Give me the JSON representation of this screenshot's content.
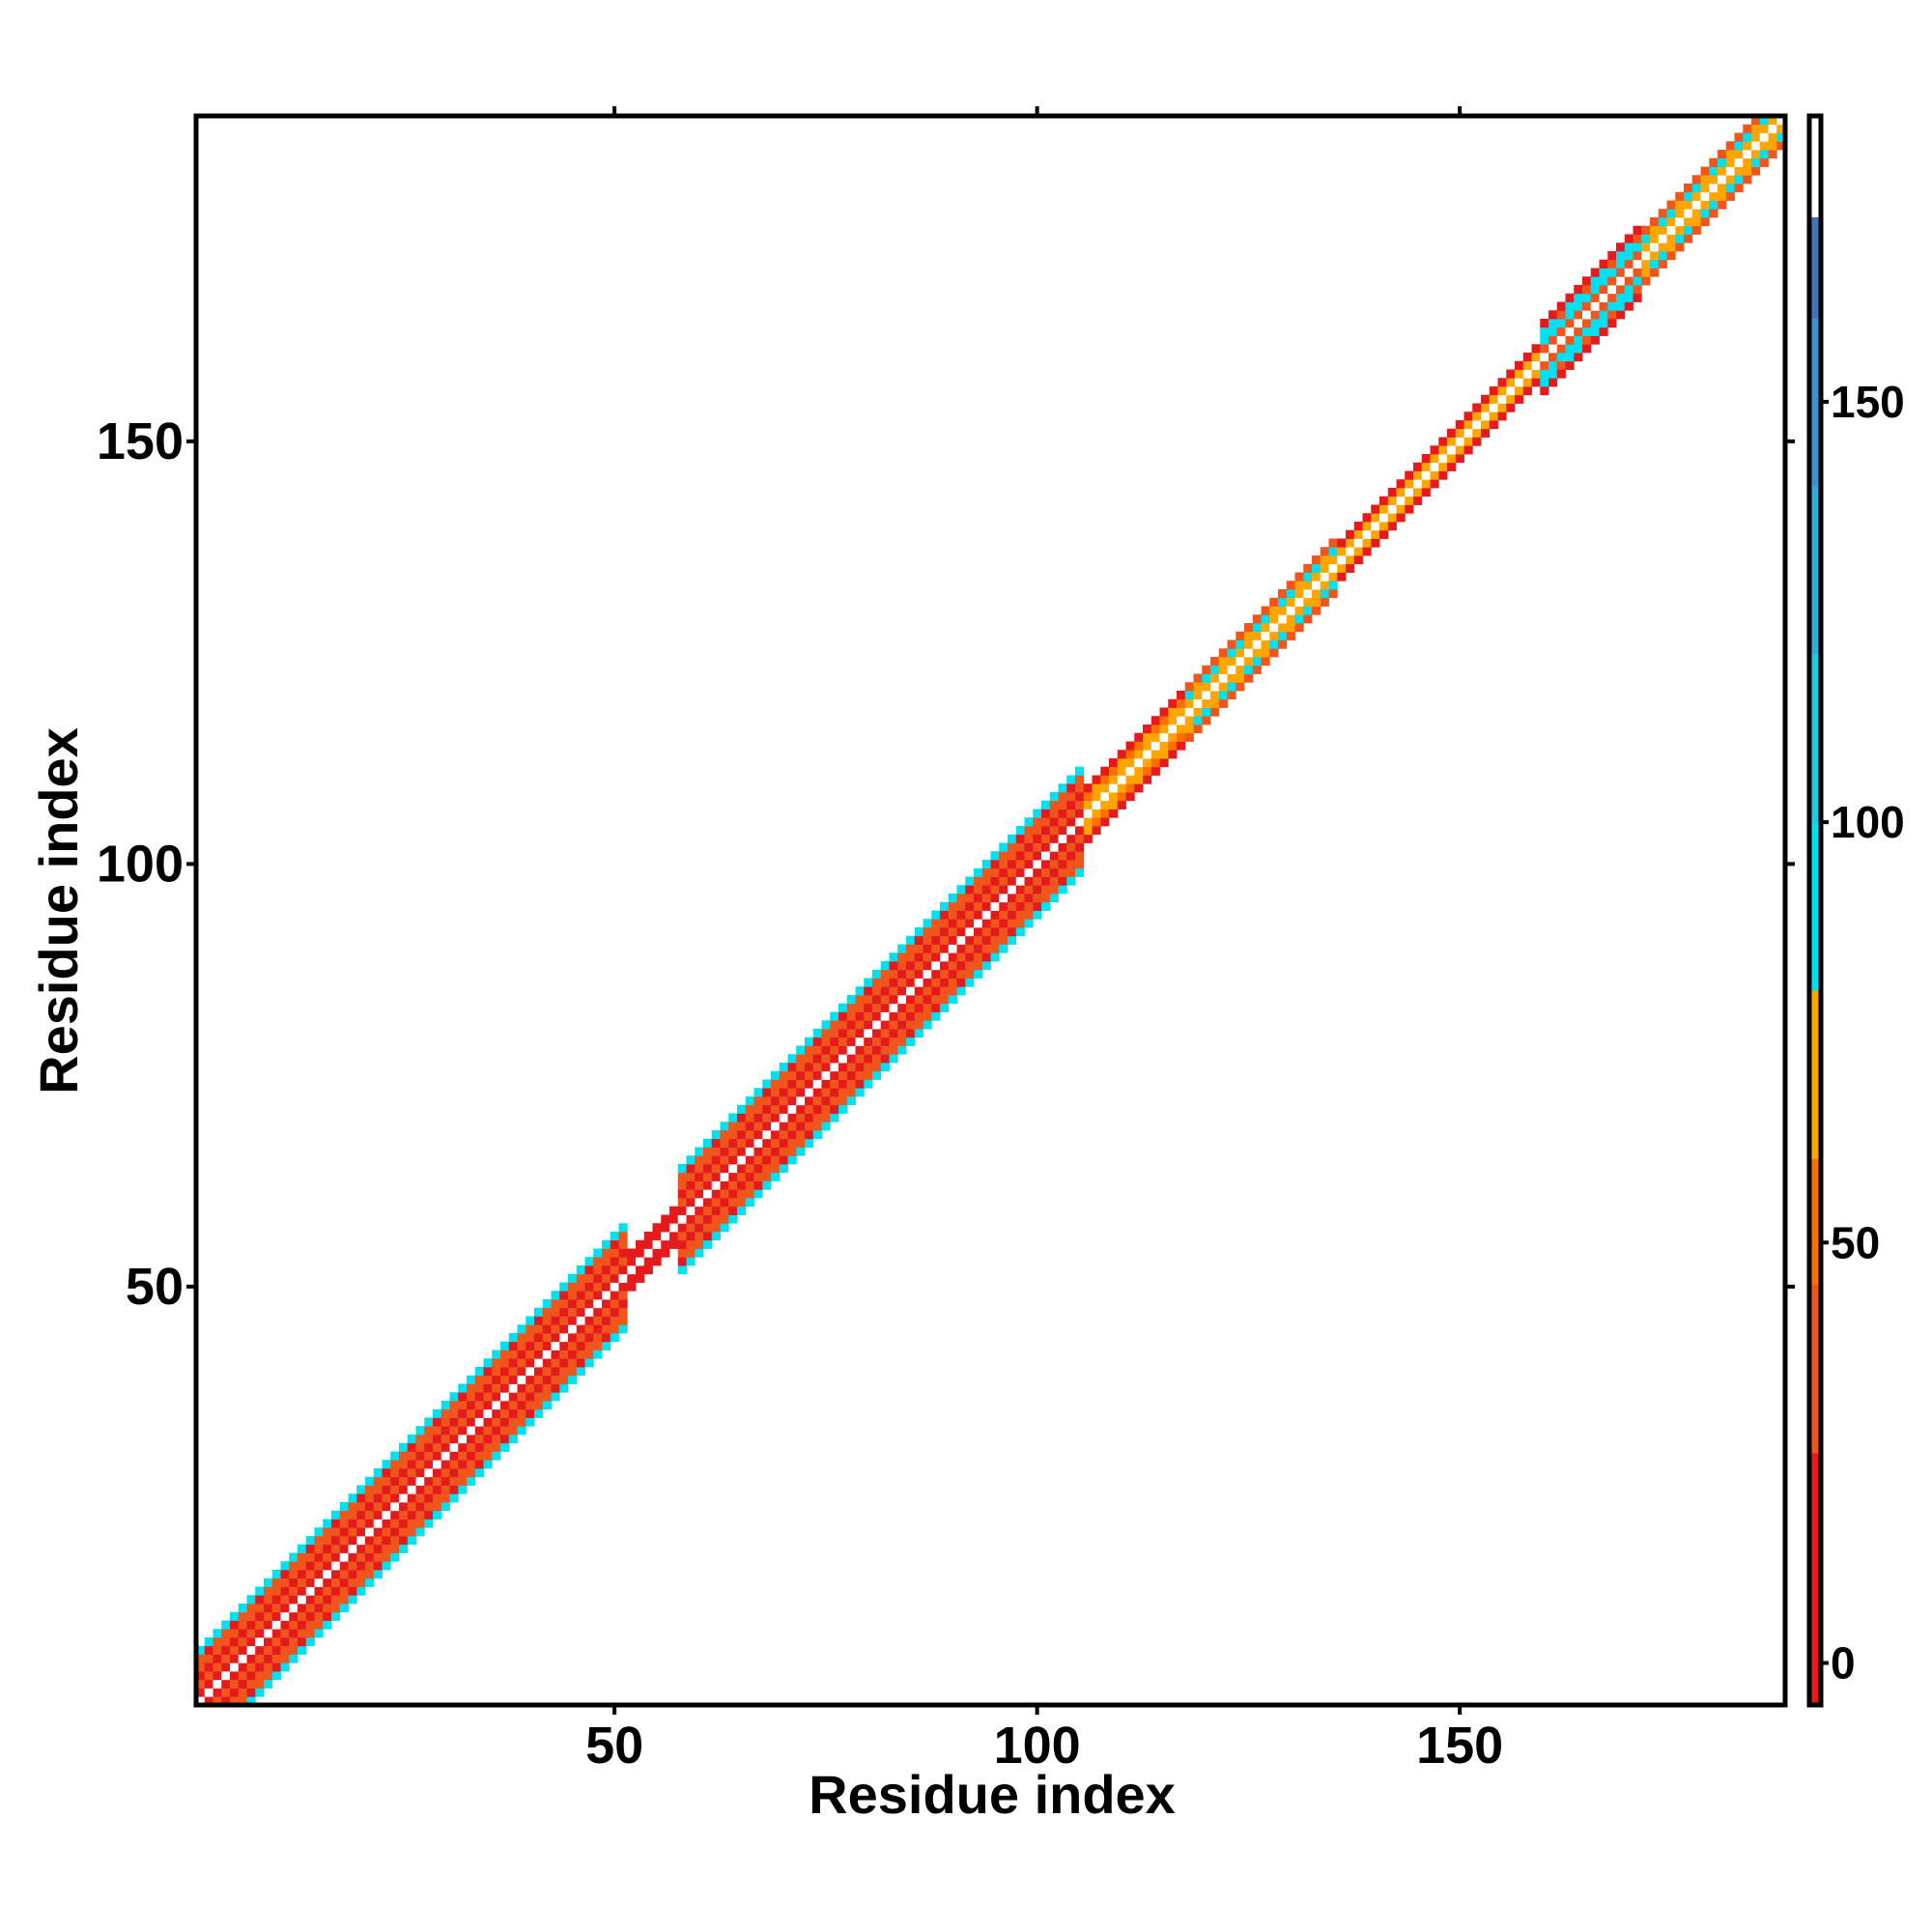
{
  "chart_data": {
    "type": "heatmap",
    "title": "",
    "xlabel": "Residue index",
    "ylabel": "Residue index",
    "xlim": [
      1,
      188
    ],
    "ylim": [
      1,
      188
    ],
    "xticks": [
      50,
      100,
      150
    ],
    "yticks": [
      50,
      100,
      150
    ],
    "colorbar": {
      "ticks": [
        0,
        50,
        100,
        150
      ],
      "range": [
        -5,
        184
      ],
      "bands": [
        {
          "from": -5,
          "to": 25,
          "color": "#e41a1c"
        },
        {
          "from": 25,
          "to": 45,
          "color": "#f0561c"
        },
        {
          "from": 45,
          "to": 60,
          "color": "#ff6f00"
        },
        {
          "from": 60,
          "to": 80,
          "color": "#ffa500"
        },
        {
          "from": 80,
          "to": 100,
          "color": "#00e0f0"
        },
        {
          "from": 100,
          "to": 120,
          "color": "#20c8e0"
        },
        {
          "from": 120,
          "to": 140,
          "color": "#30aed6"
        },
        {
          "from": 140,
          "to": 160,
          "color": "#3a92cf"
        },
        {
          "from": 160,
          "to": 172,
          "color": "#4573b8"
        },
        {
          "from": 172,
          "to": 184,
          "color": "#ffffff"
        }
      ]
    },
    "band_segments": [
      {
        "start": 1,
        "end": 52,
        "halfwidth": 6,
        "outer": "#00e0f0",
        "inner": "#f0561c",
        "edge_accent": "#e41a1c"
      },
      {
        "start": 52,
        "end": 60,
        "halfwidth": 2,
        "outer": "#e41a1c",
        "inner": "#ff6f00",
        "edge_accent": "#e41a1c"
      },
      {
        "start": 58,
        "end": 106,
        "halfwidth": 6,
        "outer": "#00e0f0",
        "inner": "#f0561c",
        "edge_accent": "#e41a1c"
      },
      {
        "start": 106,
        "end": 118,
        "halfwidth": 3,
        "outer": "#e41a1c",
        "inner": "#ff6f00",
        "edge_accent": "#ffa500"
      },
      {
        "start": 118,
        "end": 136,
        "halfwidth": 3,
        "outer": "#f0561c",
        "inner": "#00e0f0",
        "edge_accent": "#ffa500"
      },
      {
        "start": 136,
        "end": 160,
        "halfwidth": 2,
        "outer": "#e41a1c",
        "inner": "#ff6f00",
        "edge_accent": "#ffa500"
      },
      {
        "start": 160,
        "end": 172,
        "halfwidth": 4,
        "outer": "#e41a1c",
        "inner": "#00e0f0",
        "edge_accent": "#f0561c"
      },
      {
        "start": 172,
        "end": 188,
        "halfwidth": 3,
        "outer": "#f0561c",
        "inner": "#00e0f0",
        "edge_accent": "#ffa500"
      }
    ],
    "grid": false,
    "legend": "colorbar-right"
  }
}
